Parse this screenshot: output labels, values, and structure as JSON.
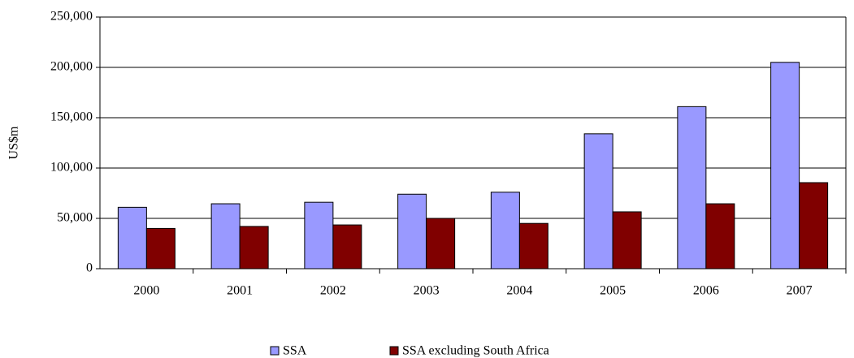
{
  "chart_data": {
    "type": "bar",
    "y_label": "US$m",
    "categories": [
      "2000",
      "2001",
      "2002",
      "2003",
      "2004",
      "2005",
      "2006",
      "2007"
    ],
    "series": [
      {
        "name": "SSA",
        "color": "#9999ff",
        "values": [
          61000,
          64500,
          66000,
          74000,
          76000,
          134000,
          161000,
          205000
        ]
      },
      {
        "name": "SSA excluding South Africa",
        "color": "#800000",
        "values": [
          40000,
          42000,
          43500,
          50000,
          45000,
          56500,
          64500,
          85500
        ]
      }
    ],
    "ylim": [
      0,
      250000
    ],
    "yticks": [
      0,
      {
        "value": 50000,
        "label": "50,000"
      },
      {
        "value": 100000,
        "label": "100,000"
      },
      {
        "value": 150000,
        "label": "150,000"
      },
      {
        "value": 200000,
        "label": "200,000"
      },
      {
        "value": 250000,
        "label": "250,000"
      }
    ],
    "grid": true
  }
}
